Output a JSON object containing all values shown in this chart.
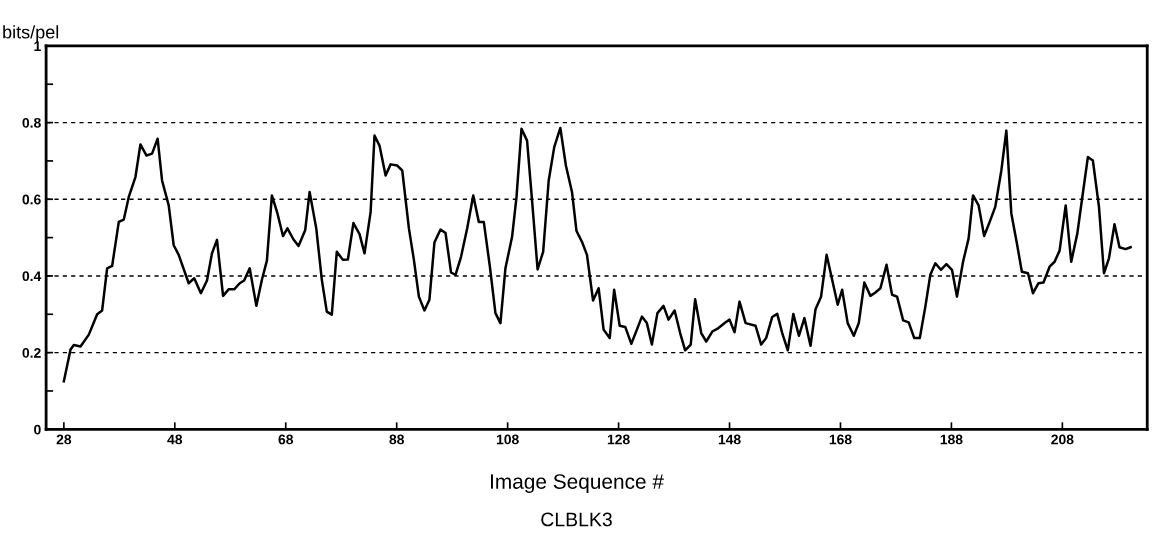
{
  "chart_data": {
    "type": "line",
    "ylabel": "bits/pel",
    "xlabel": "Image Sequence #",
    "annotations": [
      "CLBLK3"
    ],
    "xlim": [
      24.8,
      223.3
    ],
    "xticks": [
      28,
      48,
      68,
      88,
      108,
      128,
      148,
      168,
      188,
      208
    ],
    "ylim": [
      0,
      1
    ],
    "yticks": [
      0,
      {
        "value": 0.1,
        "label": null
      },
      0.2,
      {
        "value": 0.3,
        "label": null
      },
      0.4,
      {
        "value": 0.5,
        "label": null
      },
      0.6,
      {
        "value": 0.7,
        "label": null
      },
      0.8,
      {
        "value": 0.9,
        "label": null
      },
      1
    ],
    "grid": "y",
    "marker": "none",
    "line_style": "solid",
    "series": [
      {
        "color": "#000000",
        "x": [
          28,
          29.2,
          29.8,
          31.0,
          32.5,
          34.0,
          34.9,
          35.8,
          36.7,
          37.9,
          38.8,
          39.7,
          40.9,
          41.8,
          42.9,
          43.9,
          44.9,
          45.7,
          46.9,
          47.8,
          48.7,
          50.5,
          51.5,
          52.7,
          53.8,
          54.7,
          55.6,
          56.7,
          57.7,
          58.7,
          59.7,
          60.5,
          61.5,
          62.7,
          63.7,
          64.6,
          65.5,
          66.5,
          67.5,
          68.3,
          69.4,
          70.3,
          71.5,
          72.3,
          73.5,
          74.5,
          75.4,
          76.3,
          77.2,
          78.3,
          79.2,
          80.2,
          81.3,
          82.2,
          83.3,
          84.0,
          84.9,
          86.0,
          86.9,
          88.1,
          89.0,
          90.2,
          91.1,
          92.0,
          93.0,
          93.9,
          94.8,
          95.9,
          96.8,
          97.8,
          98.6,
          99.6,
          100.7,
          101.8,
          102.8,
          103.7,
          104.8,
          105.8,
          106.7,
          107.6,
          108.8,
          109.6,
          110.5,
          111.5,
          112.4,
          113.4,
          114.4,
          115.4,
          116.4,
          117.5,
          118.5,
          119.6,
          120.4,
          121.4,
          122.3,
          123.4,
          124.4,
          125.3,
          126.4,
          127.2,
          128.2,
          129.2,
          130.3,
          131.3,
          132.2,
          133.1,
          134.0,
          135.0,
          136.1,
          137.0,
          138.1,
          139.1,
          140.0,
          141.0,
          141.8,
          142.9,
          143.8,
          144.9,
          146.0,
          147.3,
          148.0,
          148.9,
          149.8,
          150.9,
          152.7,
          153.7,
          154.6,
          155.7,
          156.6,
          157.5,
          158.5,
          159.5,
          160.5,
          161.5,
          162.6,
          163.5,
          164.5,
          165.5,
          166.5,
          167.5,
          168.3,
          169.3,
          170.4,
          171.3,
          172.3,
          173.4,
          174.3,
          175.2,
          176.3,
          177.3,
          178.2,
          179.3,
          180.3,
          181.3,
          182.3,
          183.3,
          184.2,
          185.1,
          186.1,
          187.1,
          188.1,
          189.0,
          190.1,
          191.1,
          191.9,
          192.9,
          193.9,
          194.9,
          195.9,
          197.0,
          197.9,
          198.8,
          199.8,
          200.7,
          201.8,
          202.7,
          203.7,
          204.6,
          205.7,
          206.6,
          207.5,
          208.6,
          209.6,
          210.7,
          211.6,
          212.6,
          213.5,
          214.6,
          215.5,
          216.4,
          217.4,
          218.3,
          219.4,
          220.3
        ],
        "values": [
          0.125,
          0.208,
          0.22,
          0.216,
          0.247,
          0.3,
          0.31,
          0.42,
          0.426,
          0.541,
          0.547,
          0.606,
          0.658,
          0.743,
          0.714,
          0.719,
          0.758,
          0.649,
          0.584,
          0.48,
          0.455,
          0.381,
          0.394,
          0.355,
          0.388,
          0.459,
          0.494,
          0.348,
          0.365,
          0.365,
          0.381,
          0.388,
          0.42,
          0.322,
          0.39,
          0.44,
          0.61,
          0.563,
          0.504,
          0.524,
          0.495,
          0.478,
          0.519,
          0.619,
          0.524,
          0.39,
          0.307,
          0.299,
          0.463,
          0.442,
          0.443,
          0.538,
          0.509,
          0.459,
          0.567,
          0.766,
          0.74,
          0.662,
          0.691,
          0.688,
          0.675,
          0.524,
          0.442,
          0.346,
          0.31,
          0.338,
          0.487,
          0.521,
          0.512,
          0.409,
          0.403,
          0.45,
          0.524,
          0.61,
          0.541,
          0.541,
          0.424,
          0.303,
          0.277,
          0.42,
          0.502,
          0.606,
          0.784,
          0.753,
          0.597,
          0.417,
          0.463,
          0.649,
          0.736,
          0.786,
          0.688,
          0.619,
          0.518,
          0.489,
          0.455,
          0.336,
          0.368,
          0.26,
          0.238,
          0.364,
          0.27,
          0.267,
          0.223,
          0.26,
          0.294,
          0.277,
          0.221,
          0.303,
          0.322,
          0.286,
          0.31,
          0.251,
          0.206,
          0.221,
          0.339,
          0.251,
          0.229,
          0.255,
          0.264,
          0.279,
          0.286,
          0.253,
          0.333,
          0.277,
          0.27,
          0.221,
          0.238,
          0.293,
          0.301,
          0.251,
          0.206,
          0.301,
          0.244,
          0.29,
          0.218,
          0.313,
          0.346,
          0.455,
          0.39,
          0.325,
          0.364,
          0.277,
          0.244,
          0.277,
          0.383,
          0.348,
          0.357,
          0.368,
          0.429,
          0.351,
          0.346,
          0.284,
          0.279,
          0.238,
          0.238,
          0.32,
          0.403,
          0.433,
          0.416,
          0.431,
          0.416,
          0.346,
          0.437,
          0.498,
          0.61,
          0.584,
          0.504,
          0.541,
          0.58,
          0.675,
          0.779,
          0.563,
          0.485,
          0.411,
          0.407,
          0.355,
          0.381,
          0.383,
          0.424,
          0.437,
          0.466,
          0.584,
          0.437,
          0.511,
          0.606,
          0.71,
          0.701,
          0.58,
          0.407,
          0.446,
          0.535,
          0.475,
          0.47,
          0.475
        ]
      }
    ]
  }
}
